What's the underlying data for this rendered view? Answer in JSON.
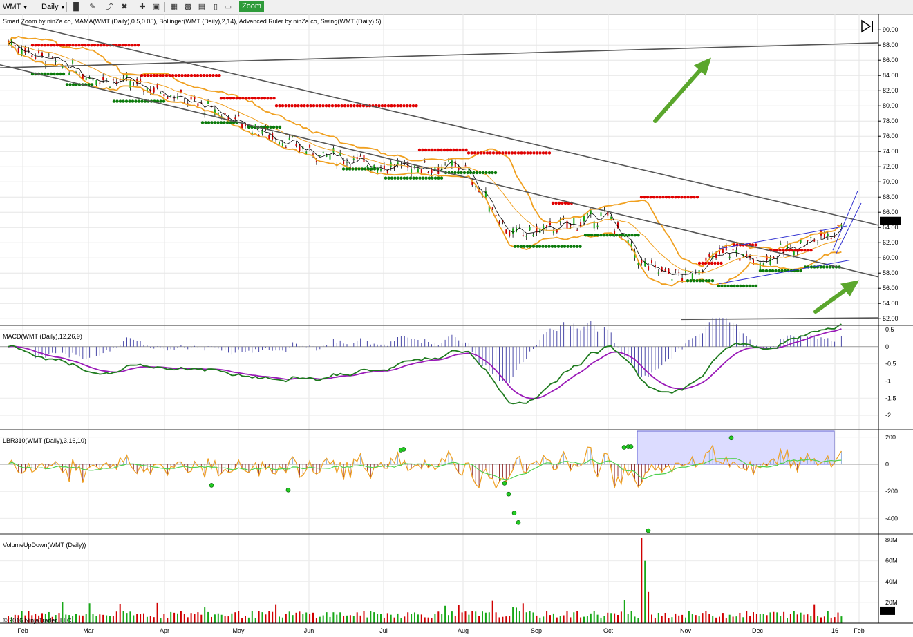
{
  "toolbar": {
    "symbol": "WMT",
    "interval": "Daily",
    "zoom_label": "Zoom"
  },
  "panes": {
    "price_label": "Smart Zoom by ninZa.co, MAMA(WMT (Daily),0.5,0.05), Bollinger(WMT (Daily),2,14), Advanced Ruler by ninZa.co, Swing(WMT (Daily),5)",
    "macd_label": "MACD(WMT (Daily),12,26,9)",
    "lbr_label": "LBR310(WMT (Daily),3,16,10)",
    "volume_label": "VolumeUpDown(WMT (Daily))"
  },
  "copyright": "© 2016 NinjaTrader, LLC",
  "last_price": "64.86",
  "last_volume": "16M",
  "chart_data": {
    "type": "candlestick",
    "symbol": "WMT",
    "x_labels": [
      "Feb",
      "Mar",
      "Apr",
      "May",
      "Jun",
      "Jul",
      "Aug",
      "Sep",
      "Oct",
      "Nov",
      "Dec",
      "16",
      "Feb"
    ],
    "price_axis": {
      "ticks": [
        "90.00",
        "88.00",
        "86.00",
        "84.00",
        "82.00",
        "80.00",
        "78.00",
        "76.00",
        "74.00",
        "72.00",
        "70.00",
        "68.00",
        "66.00",
        "64.00",
        "62.00",
        "60.00",
        "58.00",
        "56.00",
        "54.00",
        "52.00"
      ],
      "range": [
        51.2,
        91.2
      ]
    },
    "macd_axis": {
      "ticks": [
        "0.5",
        "0",
        "-0.5",
        "-1",
        "-1.5",
        "-2"
      ],
      "range": [
        -2.4,
        0.6
      ]
    },
    "lbr_axis": {
      "ticks": [
        "200",
        "0",
        "-200",
        "-400"
      ],
      "range": [
        -510,
        250
      ]
    },
    "volume_axis": {
      "ticks": [
        "80M",
        "60M",
        "40M",
        "20M"
      ],
      "range": [
        0,
        85
      ]
    },
    "price_series": {
      "close_path": [
        [
          "Feb",
          87.5
        ],
        [
          "Mar",
          84.0
        ],
        [
          "Apr",
          82.0
        ],
        [
          "May",
          78.0
        ],
        [
          "Jun",
          74.0
        ],
        [
          "Jul",
          72.0
        ],
        [
          "Aug",
          72.0
        ],
        [
          "Aug-late",
          63.0
        ],
        [
          "Sep",
          63.5
        ],
        [
          "Oct",
          65.5
        ],
        [
          "Oct-mid",
          59.0
        ],
        [
          "Nov",
          57.5
        ],
        [
          "Nov-mid",
          61.0
        ],
        [
          "Dec",
          59.5
        ],
        [
          "16",
          63.5
        ],
        [
          "last",
          64.86
        ]
      ]
    },
    "annotations": [
      "Trendline from 88 down to 58 (upper)",
      "Trendline lower channel",
      "Green up arrows",
      "Regression channel Nov-Jan"
    ]
  }
}
